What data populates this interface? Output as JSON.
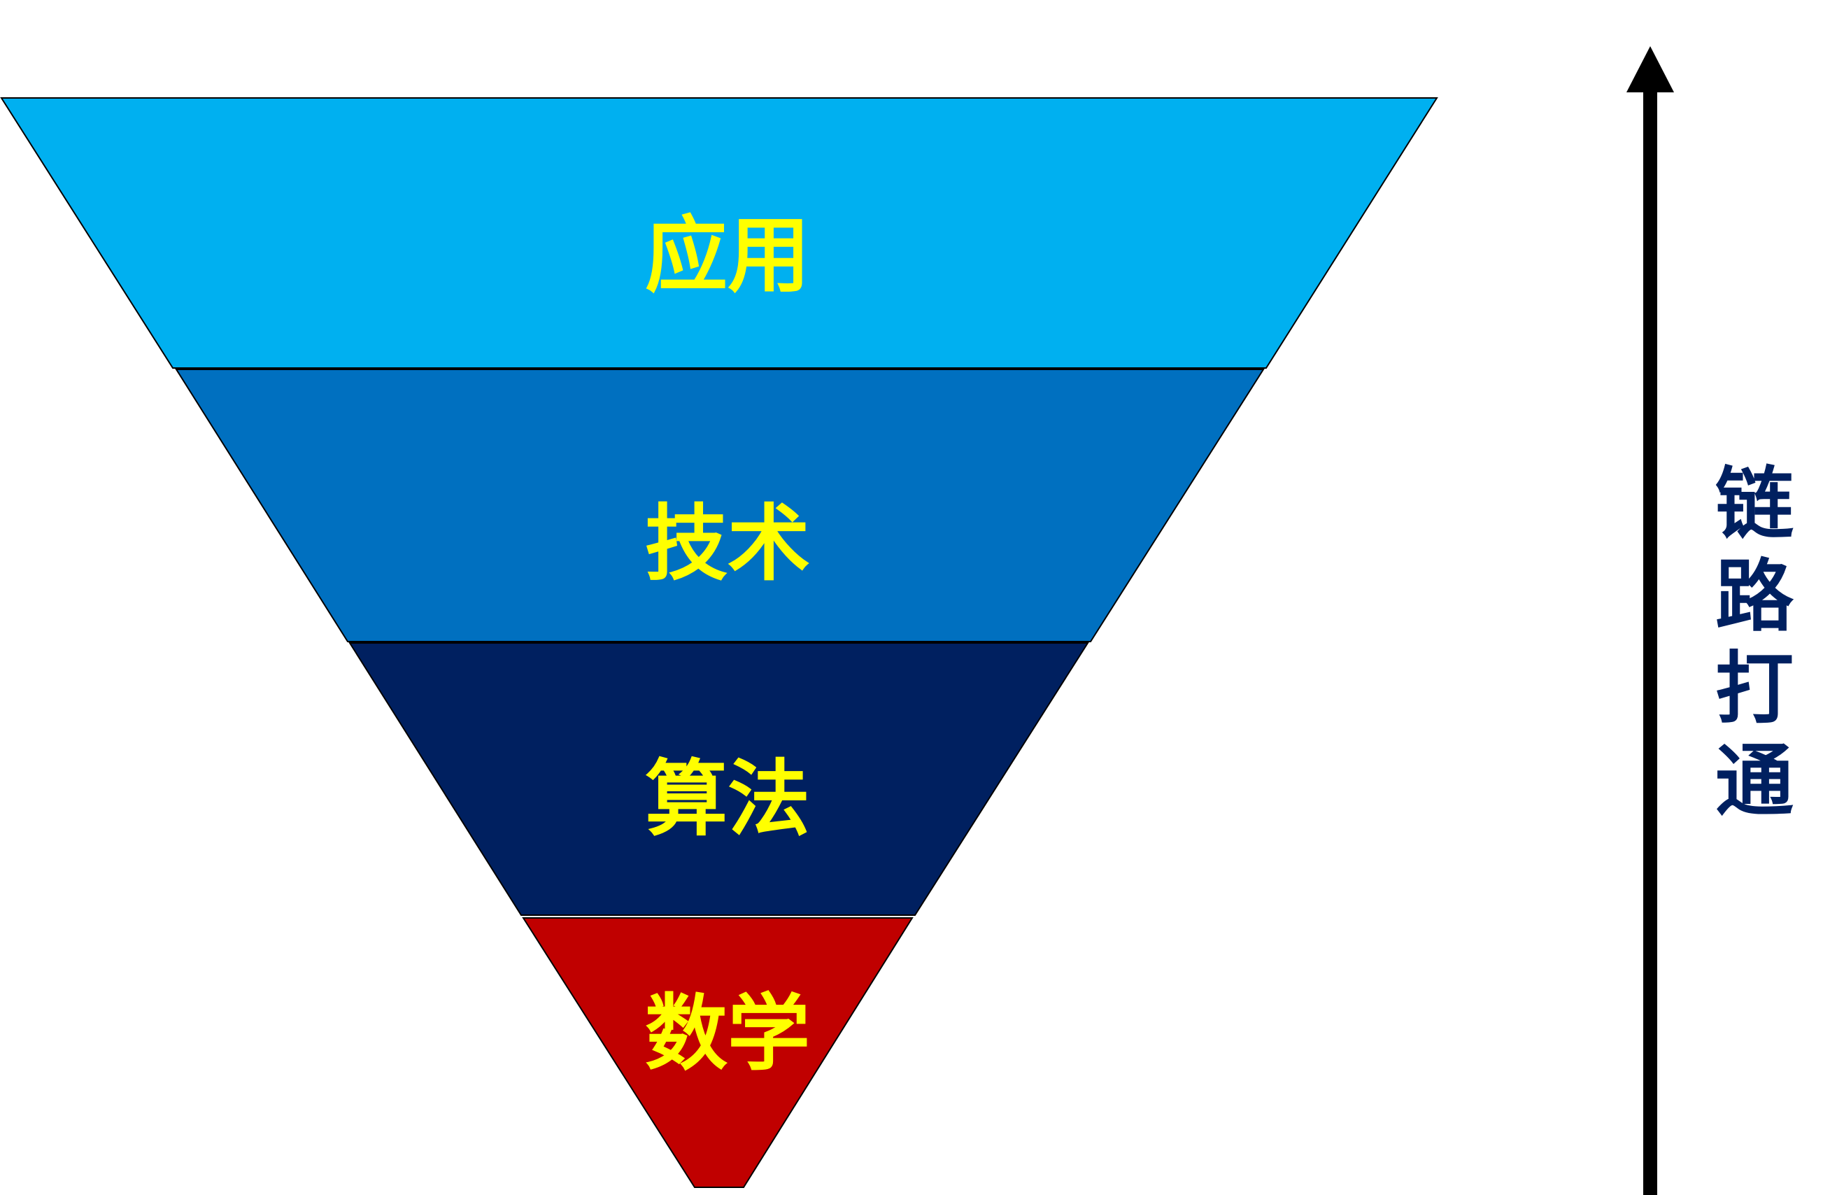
{
  "tiers": [
    {
      "label": "应用",
      "fill": "#00B0F0"
    },
    {
      "label": "技术",
      "fill": "#0070C0"
    },
    {
      "label": "算法",
      "fill": "#002060"
    },
    {
      "label": "数学",
      "fill": "#C00000"
    }
  ],
  "tier_text_color": "#FFFF00",
  "tier_stroke_color": "#000000",
  "side_arrow": {
    "chars": [
      "链",
      "路",
      "打",
      "通"
    ],
    "text_color": "#002060",
    "arrow_color": "#000000",
    "direction": "up"
  }
}
